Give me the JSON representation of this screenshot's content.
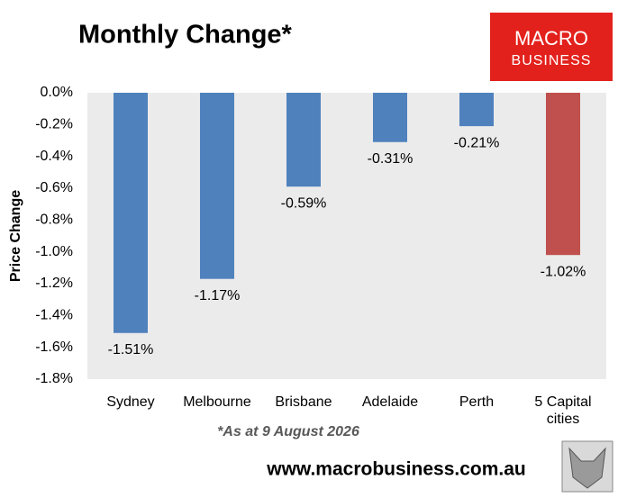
{
  "chart_data": {
    "type": "bar",
    "title": "Monthly Change*",
    "y_label": "Price Change",
    "footnote": "*As at 9 August 2026",
    "source": "www.macrobusiness.com.au",
    "logo": [
      "MACRO",
      "BUSINESS"
    ],
    "categories": [
      "Sydney",
      "Melbourne",
      "Brisbane",
      "Adelaide",
      "Perth",
      "5 Capital cities"
    ],
    "values": [
      -1.51,
      -1.17,
      -0.59,
      -0.31,
      -0.21,
      -1.02
    ],
    "value_labels": [
      "-1.51%",
      "-1.17%",
      "-0.59%",
      "-0.31%",
      "-0.21%",
      "-1.02%"
    ],
    "colors": [
      "#4f81bd",
      "#4f81bd",
      "#4f81bd",
      "#4f81bd",
      "#4f81bd",
      "#c0504d"
    ],
    "ylim": [
      -1.8,
      0
    ],
    "yticks": [
      {
        "value": 0,
        "label": "0.0%"
      },
      {
        "value": -0.2,
        "label": "-0.2%"
      },
      {
        "value": -0.4,
        "label": "-0.4%"
      },
      {
        "value": -0.6,
        "label": "-0.6%"
      },
      {
        "value": -0.8,
        "label": "-0.8%"
      },
      {
        "value": -1.0,
        "label": "-1.0%"
      },
      {
        "value": -1.2,
        "label": "-1.2%"
      },
      {
        "value": -1.4,
        "label": "-1.4%"
      },
      {
        "value": -1.6,
        "label": "-1.6%"
      },
      {
        "value": -1.8,
        "label": "-1.8%"
      }
    ],
    "grid": false
  }
}
